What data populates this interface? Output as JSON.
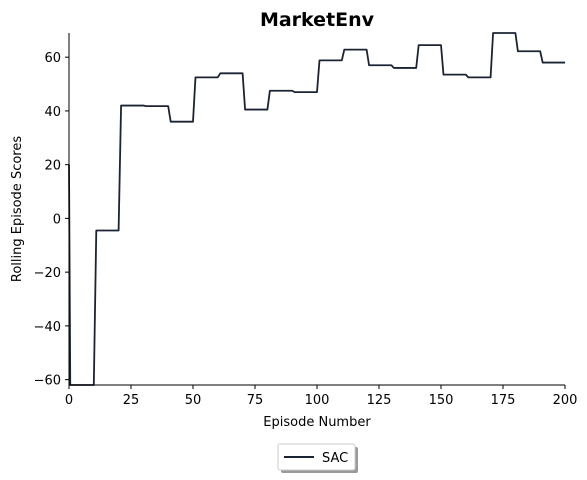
{
  "chart_data": {
    "type": "line",
    "title": "MarketEnv",
    "xlabel": "Episode Number",
    "ylabel": "Rolling Episode Scores",
    "xlim": [
      0,
      200
    ],
    "ylim": [
      -62,
      69
    ],
    "xticks": [
      "0",
      "25",
      "50",
      "75",
      "100",
      "125",
      "150",
      "175",
      "200"
    ],
    "yticks": [
      "−60",
      "−40",
      "−20",
      "0",
      "20",
      "40",
      "60"
    ],
    "grid": false,
    "legend_position": "bottom-center",
    "series": [
      {
        "name": "SAC",
        "color": "#1b2433",
        "x": [
          0,
          0.5,
          10,
          11,
          20,
          21,
          30,
          31,
          40,
          41,
          50,
          51,
          60,
          61,
          70,
          71,
          80,
          81,
          90,
          91,
          100,
          101,
          110,
          111,
          120,
          121,
          130,
          131,
          140,
          141,
          150,
          151,
          160,
          161,
          170,
          171,
          180,
          181,
          190,
          191,
          200
        ],
        "y": [
          20,
          -62,
          -62,
          -4.5,
          -4.5,
          42,
          42,
          41.8,
          41.8,
          36,
          36,
          52.5,
          52.5,
          54,
          54,
          40.5,
          40.5,
          47.5,
          47.5,
          47,
          47,
          58.8,
          58.8,
          62.8,
          62.8,
          57,
          57,
          56,
          56,
          64.5,
          64.5,
          53.5,
          53.5,
          52.5,
          52.5,
          69,
          69,
          62.2,
          62.2,
          58,
          58
        ]
      }
    ]
  }
}
